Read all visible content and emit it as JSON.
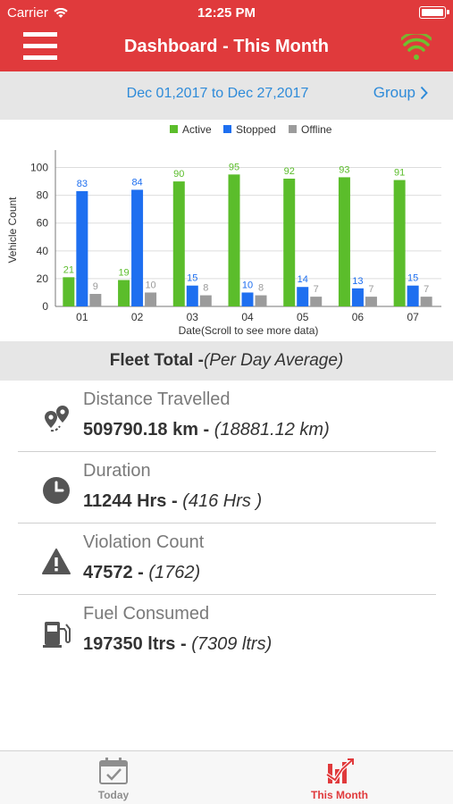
{
  "status_bar": {
    "carrier": "Carrier",
    "time": "12:25 PM"
  },
  "header": {
    "title": "Dashboard - This Month"
  },
  "date_filter": {
    "range": "Dec 01,2017 to Dec 27,2017",
    "group_label": "Group"
  },
  "chart_data": {
    "type": "bar",
    "categories": [
      "01",
      "02",
      "03",
      "04",
      "05",
      "06",
      "07"
    ],
    "series": [
      {
        "name": "Active",
        "color": "#5bbd2b",
        "values": [
          21,
          19,
          90,
          95,
          92,
          93,
          91
        ]
      },
      {
        "name": "Stopped",
        "color": "#1e6ff0",
        "values": [
          83,
          84,
          15,
          10,
          14,
          13,
          15
        ]
      },
      {
        "name": "Offline",
        "color": "#9b9b9b",
        "values": [
          9,
          10,
          8,
          8,
          7,
          7,
          7
        ]
      }
    ],
    "ylabel": "Vehicle Count",
    "xlabel": "Date(Scroll to see more data)",
    "ylim": [
      0,
      110
    ],
    "yticks": [
      0,
      20,
      40,
      60,
      80,
      100
    ],
    "legend_position": "top-center",
    "grid": true
  },
  "fleet": {
    "title": "Fleet Total -",
    "subtitle": "(Per Day Average)"
  },
  "stats": [
    {
      "label": "Distance Travelled",
      "value": "509790.18 km -",
      "average": " (18881.12 km)",
      "icon": "location-pins-icon"
    },
    {
      "label": "Duration",
      "value": "11244 Hrs  -",
      "average": " (416 Hrs )",
      "icon": "clock-icon"
    },
    {
      "label": "Violation Count",
      "value": "47572 -",
      "average": " (1762)",
      "icon": "warning-icon"
    },
    {
      "label": "Fuel Consumed",
      "value": "197350 ltrs -",
      "average": " (7309 ltrs)",
      "icon": "fuel-pump-icon"
    }
  ],
  "tabs": [
    {
      "label": "Today",
      "icon": "calendar-check-icon"
    },
    {
      "label": "This Month",
      "icon": "month-chart-icon"
    }
  ],
  "colors": {
    "brand": "#e03a3c",
    "link": "#2e8bd9",
    "active": "#5bbd2b",
    "stopped": "#1e6ff0",
    "offline": "#9b9b9b"
  }
}
